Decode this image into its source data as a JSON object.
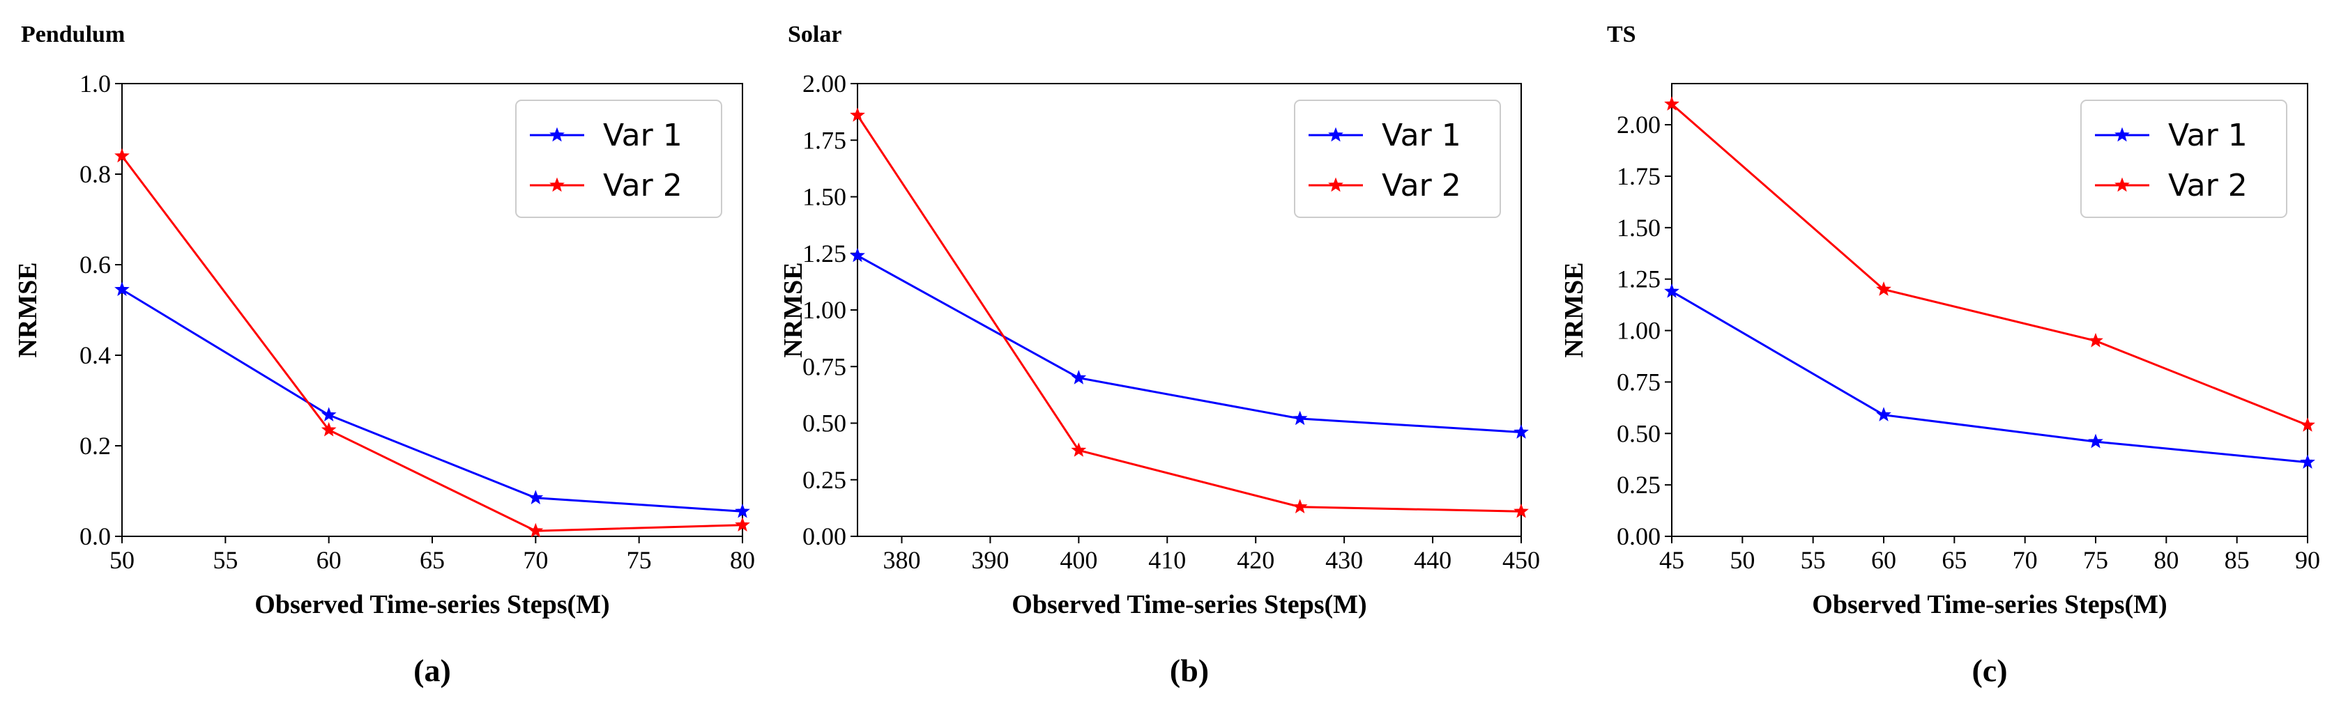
{
  "chart_data": [
    {
      "type": "line",
      "title": "Pendulum",
      "xlabel": "Observed Time-series Steps(M)",
      "ylabel": "NRMSE",
      "caption": "(a)",
      "xlim": [
        50,
        80
      ],
      "ylim": [
        0,
        1.0
      ],
      "xticks": [
        50,
        55,
        60,
        65,
        70,
        75,
        80
      ],
      "yticks": [
        0.0,
        0.2,
        0.4,
        0.6,
        0.8,
        1.0
      ],
      "ytick_decimals": 1,
      "legend_position": "top-right",
      "x": [
        50,
        60,
        70,
        80
      ],
      "series": [
        {
          "name": "Var 1",
          "color": "#0000ff",
          "values": [
            0.545,
            0.268,
            0.085,
            0.055
          ]
        },
        {
          "name": "Var 2",
          "color": "#ff0000",
          "values": [
            0.84,
            0.235,
            0.012,
            0.025
          ]
        }
      ]
    },
    {
      "type": "line",
      "title": "Solar",
      "xlabel": "Observed Time-series Steps(M)",
      "ylabel": "NRMSE",
      "caption": "(b)",
      "xlim": [
        375,
        450
      ],
      "ylim": [
        0,
        2.0
      ],
      "xticks": [
        380,
        390,
        400,
        410,
        420,
        430,
        440,
        450
      ],
      "yticks": [
        0.0,
        0.25,
        0.5,
        0.75,
        1.0,
        1.25,
        1.5,
        1.75,
        2.0
      ],
      "ytick_decimals": 2,
      "legend_position": "top-right",
      "x": [
        375,
        400,
        425,
        450
      ],
      "series": [
        {
          "name": "Var 1",
          "color": "#0000ff",
          "values": [
            1.24,
            0.7,
            0.52,
            0.46
          ]
        },
        {
          "name": "Var 2",
          "color": "#ff0000",
          "values": [
            1.86,
            0.38,
            0.13,
            0.11
          ]
        }
      ]
    },
    {
      "type": "line",
      "title": "TS",
      "xlabel": "Observed Time-series Steps(M)",
      "ylabel": "NRMSE",
      "caption": "(c)",
      "xlim": [
        45,
        90
      ],
      "ylim": [
        0,
        2.2
      ],
      "xticks": [
        45,
        50,
        55,
        60,
        65,
        70,
        75,
        80,
        85,
        90
      ],
      "yticks": [
        0.0,
        0.25,
        0.5,
        0.75,
        1.0,
        1.25,
        1.5,
        1.75,
        2.0
      ],
      "ytick_decimals": 2,
      "legend_position": "top-right",
      "x": [
        45,
        60,
        75,
        90
      ],
      "series": [
        {
          "name": "Var 1",
          "color": "#0000ff",
          "values": [
            1.19,
            0.59,
            0.46,
            0.36
          ]
        },
        {
          "name": "Var 2",
          "color": "#ff0000",
          "values": [
            2.1,
            1.2,
            0.95,
            0.54
          ]
        }
      ]
    }
  ]
}
